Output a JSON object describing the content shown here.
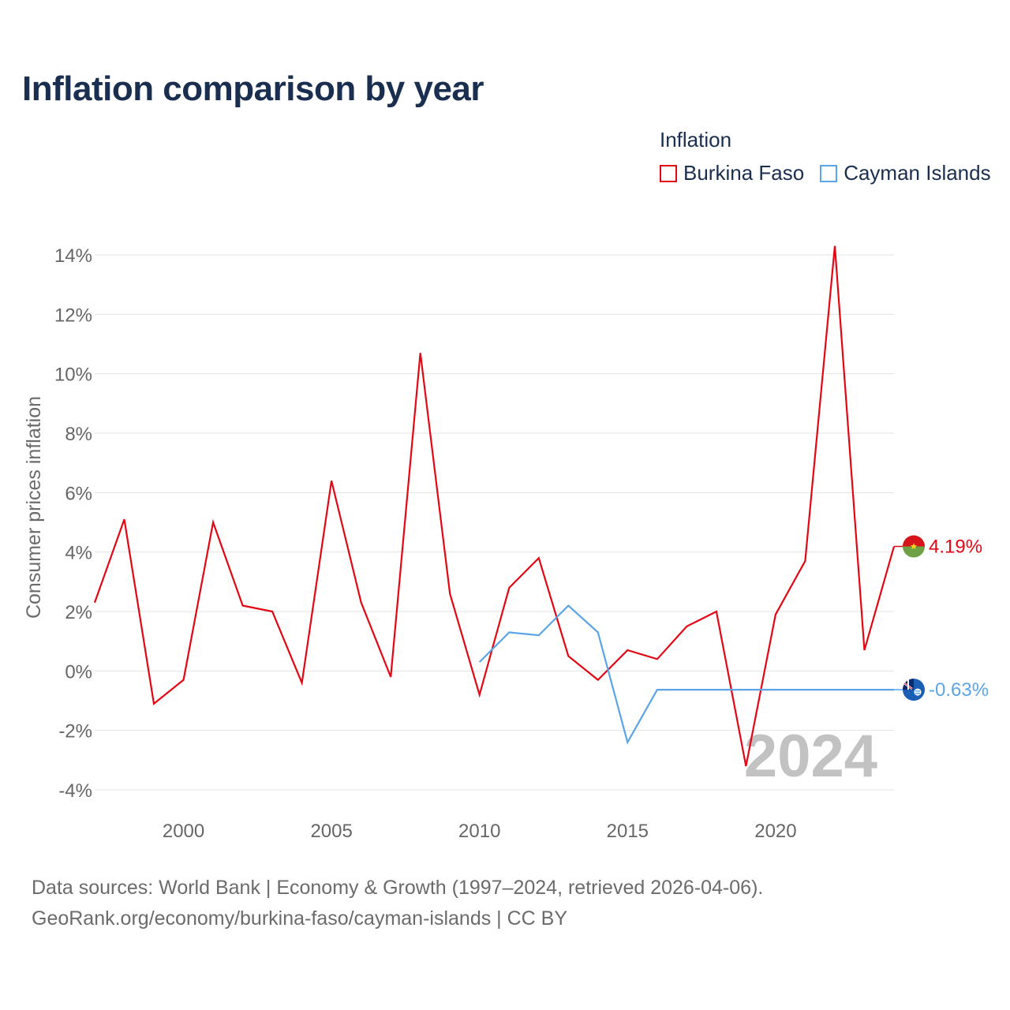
{
  "title": "Inflation comparison by year",
  "legend": {
    "title": "Inflation",
    "items": [
      {
        "label": "Burkina Faso",
        "color": "#e30613"
      },
      {
        "label": "Cayman Islands",
        "color": "#5ba4e6"
      }
    ]
  },
  "footer": {
    "line1": "Data sources: World Bank | Economy & Growth (1997–2024, retrieved 2026-04-06).",
    "line2": "GeoRank.org/economy/burkina-faso/cayman-islands | CC BY"
  },
  "chart_data": {
    "type": "line",
    "title": "Inflation comparison by year",
    "xlabel": "",
    "ylabel": "Consumer prices inflation",
    "xlim": [
      1997,
      2024
    ],
    "ylim": [
      -4,
      14
    ],
    "yticks": [
      -4,
      -2,
      0,
      2,
      4,
      6,
      8,
      10,
      12,
      14
    ],
    "ytick_labels": [
      "-4%",
      "-2%",
      "0%",
      "2%",
      "4%",
      "6%",
      "8%",
      "10%",
      "12%",
      "14%"
    ],
    "xticks": [
      2000,
      2005,
      2010,
      2015,
      2020
    ],
    "xtick_labels": [
      "2000",
      "2005",
      "2010",
      "2015",
      "2020"
    ],
    "grid": true,
    "watermark_year": "2024",
    "series": [
      {
        "name": "Burkina Faso",
        "color": "#e30613",
        "end_label": "4.19%",
        "x": [
          1997,
          1998,
          1999,
          2000,
          2001,
          2002,
          2003,
          2004,
          2005,
          2006,
          2007,
          2008,
          2009,
          2010,
          2011,
          2012,
          2013,
          2014,
          2015,
          2016,
          2017,
          2018,
          2019,
          2020,
          2021,
          2022,
          2023,
          2024
        ],
        "values": [
          2.3,
          5.1,
          -1.1,
          -0.3,
          5.0,
          2.2,
          2.0,
          -0.4,
          6.4,
          2.3,
          -0.2,
          10.7,
          2.6,
          -0.8,
          2.8,
          3.8,
          0.5,
          -0.3,
          0.7,
          0.4,
          1.5,
          2.0,
          -3.2,
          1.9,
          3.7,
          14.3,
          0.7,
          4.19
        ]
      },
      {
        "name": "Cayman Islands",
        "color": "#5ba4e6",
        "end_label": "-0.63%",
        "x": [
          2010,
          2011,
          2012,
          2013,
          2014,
          2015,
          2016,
          2017,
          2018,
          2019,
          2020,
          2021,
          2022,
          2023,
          2024
        ],
        "values": [
          0.3,
          1.3,
          1.2,
          2.2,
          1.3,
          -2.4,
          -0.63,
          -0.63,
          -0.63,
          -0.63,
          -0.63,
          -0.63,
          -0.63,
          -0.63,
          -0.63
        ]
      }
    ]
  }
}
